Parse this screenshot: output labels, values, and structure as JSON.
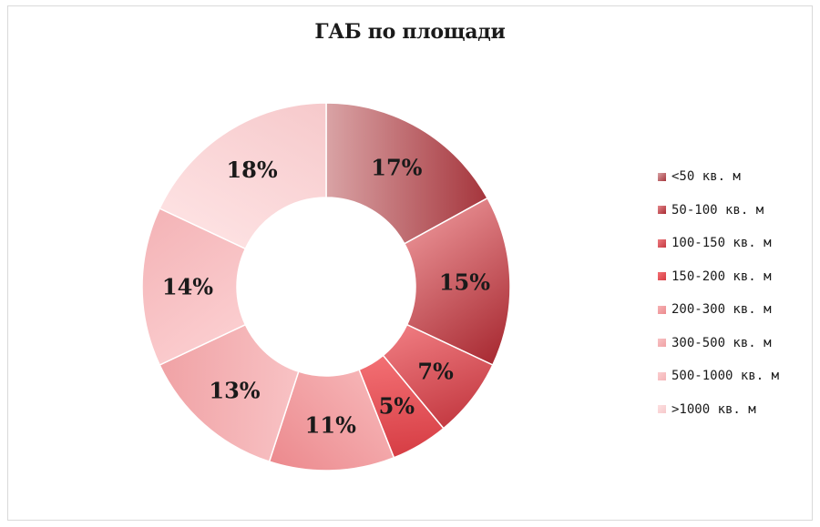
{
  "chart_data": {
    "type": "pie",
    "variant": "donut",
    "title": "ГАБ по площади",
    "categories": [
      "<50 кв. м",
      "50-100 кв. м",
      "100-150 кв. м",
      "150-200 кв. м",
      "200-300 кв. м",
      "300-500 кв. м",
      "500-1000 кв. м",
      ">1000 кв. м"
    ],
    "values": [
      17,
      15,
      7,
      5,
      11,
      13,
      14,
      18
    ],
    "labels": [
      "17%",
      "15%",
      "7%",
      "5%",
      "11%",
      "13%",
      "14%",
      "18%"
    ],
    "colors": [
      {
        "light": "#d9a3a5",
        "dark": "#a5353c"
      },
      {
        "light": "#e4888c",
        "dark": "#a82a32"
      },
      {
        "light": "#ef7b80",
        "dark": "#c43a42"
      },
      {
        "light": "#f37074",
        "dark": "#d63d44"
      },
      {
        "light": "#f6b3b5",
        "dark": "#ec8a8e"
      },
      {
        "light": "#f8c2c4",
        "dark": "#f0a2a5"
      },
      {
        "light": "#fbcdcf",
        "dark": "#f4b4b7"
      },
      {
        "light": "#fde0e1",
        "dark": "#f6c9cb"
      }
    ],
    "legend_position": "right"
  }
}
